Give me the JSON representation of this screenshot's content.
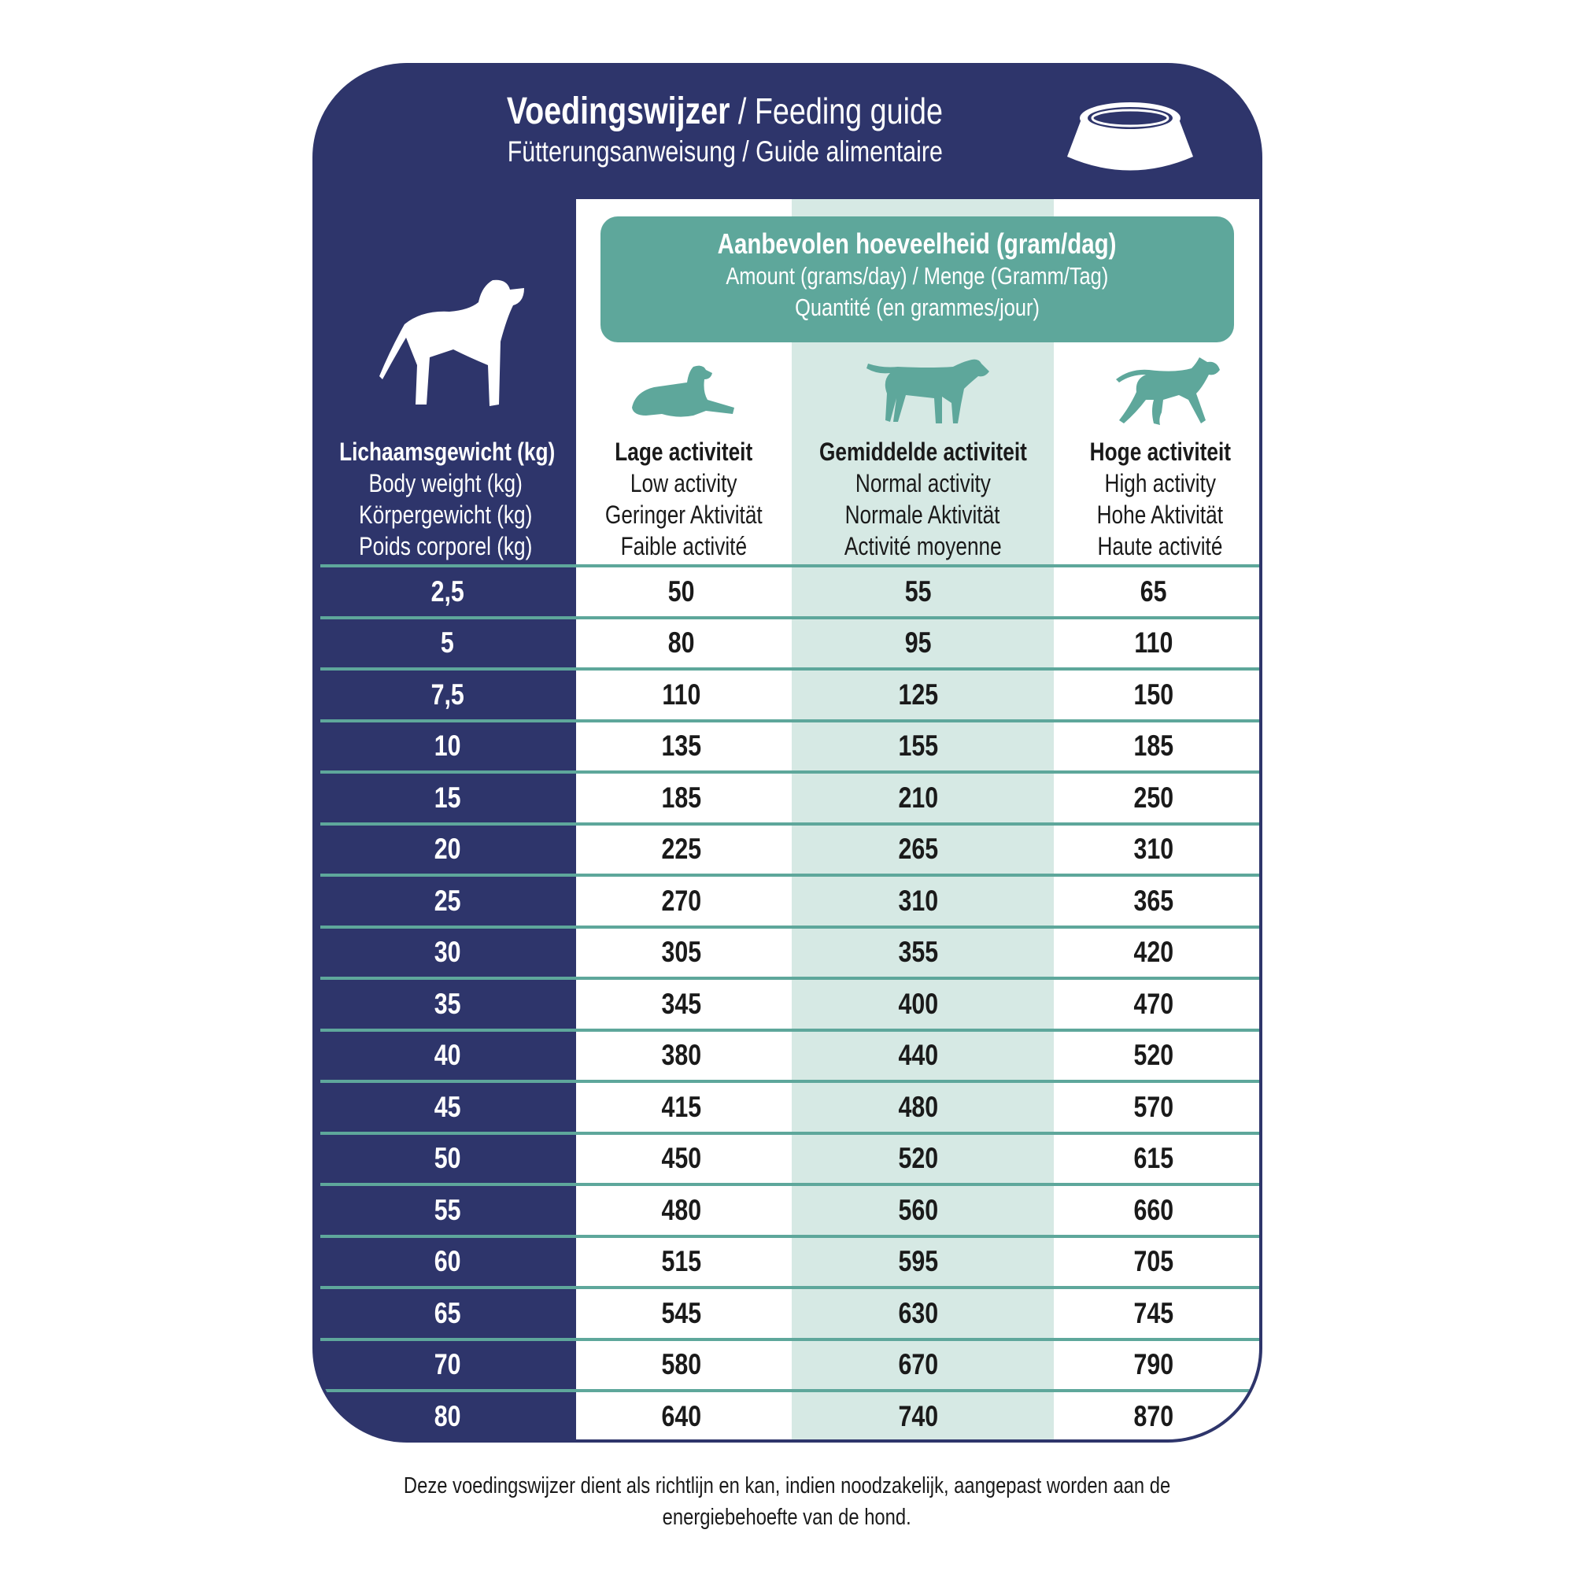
{
  "header": {
    "title_bold": "Voedingswijzer",
    "title_rest": " / Feeding guide",
    "subtitle": "Fütterungsanweisung / Guide alimentaire"
  },
  "amount_box": {
    "line1": "Aanbevolen hoeveelheid (gram/dag)",
    "line2": "Amount (grams/day) / Menge (Gramm/Tag)",
    "line3": "Quantité (en grammes/jour)"
  },
  "columns": [
    {
      "lines": [
        "Lichaamsgewicht (kg)",
        "Body weight (kg)",
        "Körpergewicht (kg)",
        "Poids corporel (kg)"
      ],
      "icon": "standing-dog-icon"
    },
    {
      "lines": [
        "Lage activiteit",
        "Low activity",
        "Geringer Aktivität",
        "Faible activité"
      ],
      "icon": "lying-dog-icon"
    },
    {
      "lines": [
        "Gemiddelde activiteit",
        "Normal activity",
        "Normale Aktivität",
        "Activité moyenne"
      ],
      "icon": "walking-dog-icon"
    },
    {
      "lines": [
        "Hoge activiteit",
        "High activity",
        "Hohe Aktivität",
        "Haute activité"
      ],
      "icon": "running-dog-icon"
    }
  ],
  "rows": [
    [
      "2,5",
      "50",
      "55",
      "65"
    ],
    [
      "5",
      "80",
      "95",
      "110"
    ],
    [
      "7,5",
      "110",
      "125",
      "150"
    ],
    [
      "10",
      "135",
      "155",
      "185"
    ],
    [
      "15",
      "185",
      "210",
      "250"
    ],
    [
      "20",
      "225",
      "265",
      "310"
    ],
    [
      "25",
      "270",
      "310",
      "365"
    ],
    [
      "30",
      "305",
      "355",
      "420"
    ],
    [
      "35",
      "345",
      "400",
      "470"
    ],
    [
      "40",
      "380",
      "440",
      "520"
    ],
    [
      "45",
      "415",
      "480",
      "570"
    ],
    [
      "50",
      "450",
      "520",
      "615"
    ],
    [
      "55",
      "480",
      "560",
      "660"
    ],
    [
      "60",
      "515",
      "595",
      "705"
    ],
    [
      "65",
      "545",
      "630",
      "745"
    ],
    [
      "70",
      "580",
      "670",
      "790"
    ],
    [
      "80",
      "640",
      "740",
      "870"
    ]
  ],
  "footer": {
    "line1": "Deze voedingswijzer dient als richtlijn en kan, indien noodzakelijk, aangepast worden aan de",
    "line2": "energiebehoefte van de hond."
  },
  "colors": {
    "navy": "#2e356b",
    "teal": "#5ea79b",
    "light_teal": "#d6e9e4"
  }
}
